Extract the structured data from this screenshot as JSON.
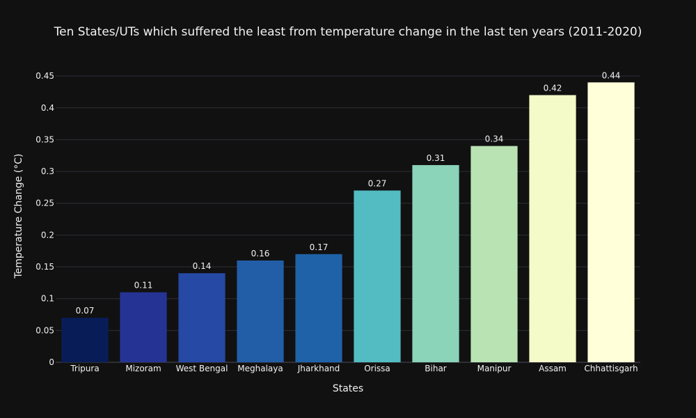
{
  "chart_data": {
    "type": "bar",
    "title": "Ten States/UTs which suffered the least from temperature change in the last ten years (2011-2020)",
    "xlabel": "States",
    "ylabel": "Temperature Change (°C)",
    "categories": [
      "Tripura",
      "Mizoram",
      "West Bengal",
      "Meghalaya",
      "Jharkhand",
      "Orissa",
      "Bihar",
      "Manipur",
      "Assam",
      "Chhattisgarh"
    ],
    "values": [
      0.07,
      0.11,
      0.14,
      0.16,
      0.17,
      0.27,
      0.31,
      0.34,
      0.42,
      0.44
    ],
    "data_labels": [
      "0.07",
      "0.11",
      "0.14",
      "0.16",
      "0.17",
      "0.27",
      "0.31",
      "0.34",
      "0.42",
      "0.44"
    ],
    "colors": [
      "#081d58",
      "#253494",
      "#2649a5",
      "#225ea8",
      "#2062a8",
      "#52bcc2",
      "#8bd3b9",
      "#b9e3b3",
      "#f4fbc8",
      "#ffffd9"
    ],
    "ylim": [
      0,
      0.46
    ],
    "yticks": [
      0,
      0.05,
      0.1,
      0.15,
      0.2,
      0.25,
      0.3,
      0.35,
      0.4,
      0.45
    ],
    "ytick_labels": [
      "0",
      "0.05",
      "0.1",
      "0.15",
      "0.2",
      "0.25",
      "0.3",
      "0.35",
      "0.4",
      "0.45"
    ],
    "grid": true,
    "legend": "none",
    "background": "#111111",
    "text_color": "#f2f2f2"
  }
}
